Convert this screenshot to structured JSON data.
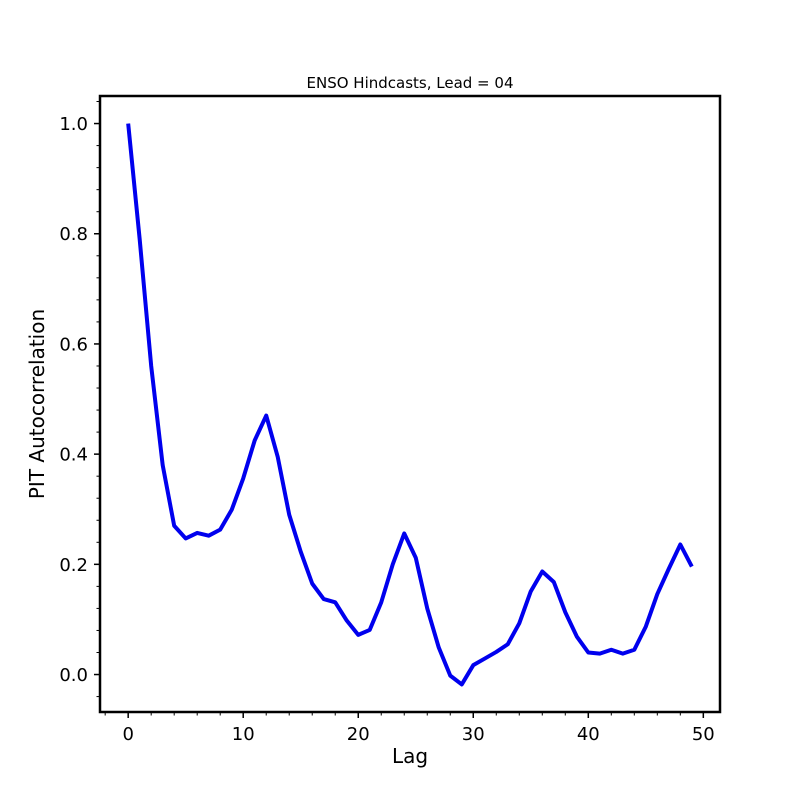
{
  "chart_data": {
    "type": "line",
    "title": "ENSO Hindcasts, Lead = 04",
    "xlabel": "Lag",
    "ylabel": "PIT Autocorrelation",
    "xlim": [
      -2.45,
      51.45
    ],
    "ylim": [
      -0.068,
      1.05
    ],
    "xticks": [
      0,
      10,
      20,
      30,
      40,
      50
    ],
    "xtick_labels": [
      "0",
      "10",
      "20",
      "30",
      "40",
      "50"
    ],
    "yticks": [
      0.0,
      0.2,
      0.4,
      0.6,
      0.8,
      1.0
    ],
    "ytick_labels": [
      "0.0",
      "0.2",
      "0.4",
      "0.6",
      "0.8",
      "1.0"
    ],
    "grid": false,
    "series": [
      {
        "color": "#0000ee",
        "x": [
          0,
          1,
          2,
          3,
          4,
          5,
          6,
          7,
          8,
          9,
          10,
          11,
          12,
          13,
          14,
          15,
          16,
          17,
          18,
          19,
          20,
          21,
          22,
          23,
          24,
          25,
          26,
          27,
          28,
          29,
          30,
          31,
          32,
          33,
          34,
          35,
          36,
          37,
          38,
          39,
          40,
          41,
          42,
          43,
          44,
          45,
          46,
          47,
          48,
          49
        ],
        "y": [
          1.0,
          0.79,
          0.56,
          0.38,
          0.27,
          0.247,
          0.257,
          0.252,
          0.263,
          0.299,
          0.356,
          0.425,
          0.47,
          0.395,
          0.29,
          0.223,
          0.165,
          0.137,
          0.131,
          0.098,
          0.072,
          0.081,
          0.131,
          0.2,
          0.256,
          0.212,
          0.12,
          0.049,
          -0.002,
          -0.018,
          0.017,
          0.029,
          0.041,
          0.055,
          0.093,
          0.151,
          0.187,
          0.168,
          0.113,
          0.069,
          0.04,
          0.038,
          0.045,
          0.038,
          0.045,
          0.087,
          0.146,
          0.192,
          0.236,
          0.196
        ]
      }
    ]
  }
}
